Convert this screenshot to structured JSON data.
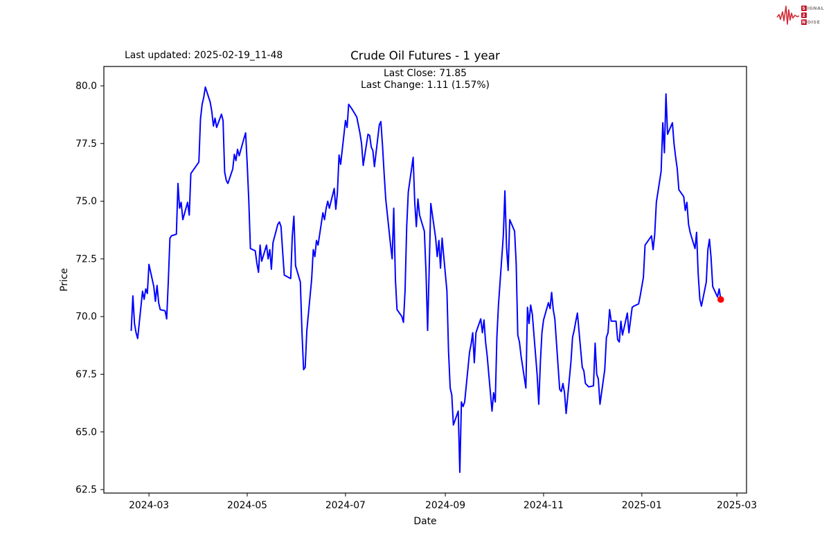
{
  "header": {
    "last_updated": "Last updated: 2025-02-19_11-48"
  },
  "logo": {
    "line1_boxed": "S",
    "line1_rest": "IGNAL",
    "line2_boxed": "2",
    "line3_boxed": "N",
    "line3_rest": "OISE",
    "box_color": "#c0182c",
    "wave_color": "#d12b35",
    "letter_color": "#8a8078"
  },
  "chart_data": {
    "type": "line",
    "title": "Crude Oil Futures - 1 year",
    "annotations": [
      "Last Close: 71.85",
      "Last Change: 1.11 (1.57%)"
    ],
    "xlabel": "Date",
    "ylabel": "Price",
    "grid": false,
    "legend": "none",
    "line_color": "#0000ff",
    "line_width": 2,
    "last_point_marker": {
      "color": "#ff0000",
      "radius": 4.8
    },
    "last_close": 71.85,
    "last_change": 1.11,
    "last_change_pct": 1.57,
    "ylim": [
      62.35,
      80.84
    ],
    "xlim": [
      "2024-02-02",
      "2025-03-07"
    ],
    "y_ticks": [
      {
        "label": "62.5",
        "value": 62.5
      },
      {
        "label": "65.0",
        "value": 65.0
      },
      {
        "label": "67.5",
        "value": 67.5
      },
      {
        "label": "70.0",
        "value": 70.0
      },
      {
        "label": "72.5",
        "value": 72.5
      },
      {
        "label": "75.0",
        "value": 75.0
      },
      {
        "label": "77.5",
        "value": 77.5
      },
      {
        "label": "80.0",
        "value": 80.0
      }
    ],
    "x_ticks": [
      {
        "label": "2024-03",
        "date": "2024-03-01"
      },
      {
        "label": "2024-05",
        "date": "2024-05-01"
      },
      {
        "label": "2024-07",
        "date": "2024-07-01"
      },
      {
        "label": "2024-09",
        "date": "2024-09-01"
      },
      {
        "label": "2024-11",
        "date": "2024-11-01"
      },
      {
        "label": "2025-01",
        "date": "2025-01-01"
      },
      {
        "label": "2025-03",
        "date": "2025-03-01"
      }
    ],
    "series": [
      {
        "name": "Crude Oil Futures",
        "dates": [
          "2024-02-19",
          "2024-02-20",
          "2024-02-21",
          "2024-02-22",
          "2024-02-23",
          "2024-02-26",
          "2024-02-27",
          "2024-02-28",
          "2024-02-29",
          "2024-03-01",
          "2024-03-04",
          "2024-03-05",
          "2024-03-06",
          "2024-03-07",
          "2024-03-08",
          "2024-03-11",
          "2024-03-12",
          "2024-03-13",
          "2024-03-14",
          "2024-03-15",
          "2024-03-18",
          "2024-03-19",
          "2024-03-20",
          "2024-03-21",
          "2024-03-22",
          "2024-03-25",
          "2024-03-26",
          "2024-03-27",
          "2024-03-28",
          "2024-04-01",
          "2024-04-02",
          "2024-04-03",
          "2024-04-04",
          "2024-04-05",
          "2024-04-08",
          "2024-04-09",
          "2024-04-10",
          "2024-04-11",
          "2024-04-12",
          "2024-04-15",
          "2024-04-16",
          "2024-04-17",
          "2024-04-18",
          "2024-04-19",
          "2024-04-22",
          "2024-04-23",
          "2024-04-24",
          "2024-04-25",
          "2024-04-26",
          "2024-04-29",
          "2024-04-30",
          "2024-05-01",
          "2024-05-02",
          "2024-05-03",
          "2024-05-06",
          "2024-05-07",
          "2024-05-08",
          "2024-05-09",
          "2024-05-10",
          "2024-05-13",
          "2024-05-14",
          "2024-05-15",
          "2024-05-16",
          "2024-05-17",
          "2024-05-20",
          "2024-05-21",
          "2024-05-22",
          "2024-05-23",
          "2024-05-24",
          "2024-05-28",
          "2024-05-29",
          "2024-05-30",
          "2024-05-31",
          "2024-06-03",
          "2024-06-04",
          "2024-06-05",
          "2024-06-06",
          "2024-06-07",
          "2024-06-10",
          "2024-06-11",
          "2024-06-12",
          "2024-06-13",
          "2024-06-14",
          "2024-06-17",
          "2024-06-18",
          "2024-06-19",
          "2024-06-20",
          "2024-06-21",
          "2024-06-24",
          "2024-06-25",
          "2024-06-26",
          "2024-06-27",
          "2024-06-28",
          "2024-07-01",
          "2024-07-02",
          "2024-07-03",
          "2024-07-05",
          "2024-07-08",
          "2024-07-09",
          "2024-07-10",
          "2024-07-11",
          "2024-07-12",
          "2024-07-15",
          "2024-07-16",
          "2024-07-17",
          "2024-07-18",
          "2024-07-19",
          "2024-07-22",
          "2024-07-23",
          "2024-07-24",
          "2024-07-25",
          "2024-07-26",
          "2024-07-29",
          "2024-07-30",
          "2024-07-31",
          "2024-08-01",
          "2024-08-02",
          "2024-08-05",
          "2024-08-06",
          "2024-08-07",
          "2024-08-08",
          "2024-08-09",
          "2024-08-12",
          "2024-08-13",
          "2024-08-14",
          "2024-08-15",
          "2024-08-16",
          "2024-08-19",
          "2024-08-20",
          "2024-08-21",
          "2024-08-22",
          "2024-08-23",
          "2024-08-26",
          "2024-08-27",
          "2024-08-28",
          "2024-08-29",
          "2024-08-30",
          "2024-09-02",
          "2024-09-03",
          "2024-09-04",
          "2024-09-05",
          "2024-09-06",
          "2024-09-09",
          "2024-09-10",
          "2024-09-11",
          "2024-09-12",
          "2024-09-13",
          "2024-09-16",
          "2024-09-17",
          "2024-09-18",
          "2024-09-19",
          "2024-09-20",
          "2024-09-23",
          "2024-09-24",
          "2024-09-25",
          "2024-09-26",
          "2024-09-27",
          "2024-09-30",
          "2024-10-01",
          "2024-10-02",
          "2024-10-03",
          "2024-10-04",
          "2024-10-07",
          "2024-10-08",
          "2024-10-09",
          "2024-10-10",
          "2024-10-11",
          "2024-10-14",
          "2024-10-15",
          "2024-10-16",
          "2024-10-17",
          "2024-10-18",
          "2024-10-21",
          "2024-10-22",
          "2024-10-23",
          "2024-10-24",
          "2024-10-25",
          "2024-10-28",
          "2024-10-29",
          "2024-10-30",
          "2024-10-31",
          "2024-11-01",
          "2024-11-04",
          "2024-11-05",
          "2024-11-06",
          "2024-11-07",
          "2024-11-08",
          "2024-11-11",
          "2024-11-12",
          "2024-11-13",
          "2024-11-14",
          "2024-11-15",
          "2024-11-18",
          "2024-11-19",
          "2024-11-20",
          "2024-11-21",
          "2024-11-22",
          "2024-11-25",
          "2024-11-26",
          "2024-11-27",
          "2024-11-29",
          "2024-12-02",
          "2024-12-03",
          "2024-12-04",
          "2024-12-05",
          "2024-12-06",
          "2024-12-09",
          "2024-12-10",
          "2024-12-11",
          "2024-12-12",
          "2024-12-13",
          "2024-12-16",
          "2024-12-17",
          "2024-12-18",
          "2024-12-19",
          "2024-12-20",
          "2024-12-23",
          "2024-12-24",
          "2024-12-26",
          "2024-12-27",
          "2024-12-30",
          "2024-12-31",
          "2025-01-02",
          "2025-01-03",
          "2025-01-06",
          "2025-01-07",
          "2025-01-08",
          "2025-01-09",
          "2025-01-10",
          "2025-01-13",
          "2025-01-14",
          "2025-01-15",
          "2025-01-16",
          "2025-01-17",
          "2025-01-20",
          "2025-01-21",
          "2025-01-22",
          "2025-01-23",
          "2025-01-24",
          "2025-01-27",
          "2025-01-28",
          "2025-01-29",
          "2025-01-30",
          "2025-01-31",
          "2025-02-03",
          "2025-02-04",
          "2025-02-05",
          "2025-02-06",
          "2025-02-07",
          "2025-02-10",
          "2025-02-11",
          "2025-02-12",
          "2025-02-13",
          "2025-02-14",
          "2025-02-17",
          "2025-02-18",
          "2025-02-19"
        ],
        "values": [
          69.4,
          70.9,
          69.7,
          69.3,
          69.05,
          71.1,
          70.75,
          71.2,
          71.0,
          72.26,
          71.3,
          70.66,
          71.35,
          70.6,
          70.3,
          70.25,
          69.9,
          71.5,
          73.4,
          73.5,
          73.57,
          75.77,
          74.7,
          74.95,
          74.2,
          74.95,
          74.4,
          76.2,
          76.3,
          76.7,
          78.56,
          79.2,
          79.5,
          79.95,
          79.3,
          78.9,
          78.26,
          78.6,
          78.2,
          78.77,
          78.5,
          76.27,
          75.9,
          75.77,
          76.4,
          77.03,
          76.76,
          77.25,
          76.97,
          77.72,
          77.96,
          76.6,
          75.0,
          72.95,
          72.85,
          72.3,
          71.92,
          73.1,
          72.4,
          73.1,
          72.5,
          72.9,
          72.05,
          73.2,
          74.0,
          74.1,
          73.9,
          72.8,
          71.8,
          71.65,
          73.5,
          74.35,
          72.2,
          71.5,
          69.3,
          67.7,
          67.8,
          69.4,
          71.6,
          72.9,
          72.6,
          73.3,
          73.1,
          74.5,
          74.2,
          74.7,
          75.0,
          74.7,
          75.55,
          74.65,
          75.35,
          77.0,
          76.6,
          78.5,
          78.2,
          79.2,
          79.0,
          78.65,
          78.3,
          77.95,
          77.5,
          76.55,
          77.9,
          77.85,
          77.35,
          77.2,
          76.5,
          78.3,
          78.45,
          77.4,
          76.2,
          75.1,
          73.1,
          72.5,
          74.7,
          71.6,
          70.3,
          70.0,
          69.75,
          71.1,
          73.9,
          75.4,
          76.9,
          74.95,
          73.9,
          75.1,
          74.4,
          73.7,
          71.9,
          69.4,
          72.1,
          74.9,
          73.4,
          72.6,
          73.3,
          72.1,
          73.4,
          71.1,
          68.5,
          66.9,
          66.6,
          65.3,
          65.9,
          63.25,
          66.3,
          66.1,
          66.3,
          68.45,
          68.8,
          69.3,
          68.0,
          69.3,
          69.9,
          69.3,
          69.85,
          68.9,
          68.3,
          65.9,
          66.7,
          66.3,
          69.1,
          70.5,
          73.5,
          75.45,
          73.0,
          72.0,
          74.2,
          73.7,
          72.3,
          69.2,
          68.9,
          68.3,
          66.9,
          70.4,
          69.7,
          70.5,
          70.1,
          67.5,
          66.2,
          68.0,
          69.3,
          69.85,
          70.6,
          70.35,
          71.05,
          70.3,
          69.9,
          66.85,
          66.75,
          67.1,
          66.7,
          65.8,
          68.05,
          69.1,
          69.4,
          69.8,
          70.15,
          67.8,
          67.65,
          67.1,
          66.95,
          67.0,
          68.85,
          67.5,
          67.3,
          66.2,
          67.7,
          69.1,
          69.3,
          70.3,
          69.8,
          69.8,
          69.0,
          68.9,
          69.8,
          69.2,
          70.15,
          69.3,
          70.4,
          70.45,
          70.55,
          70.9,
          71.7,
          73.1,
          73.4,
          73.5,
          72.9,
          73.55,
          74.95,
          76.3,
          78.4,
          77.1,
          79.65,
          77.9,
          78.4,
          77.5,
          76.9,
          76.4,
          75.5,
          75.2,
          74.6,
          74.95,
          74.0,
          73.65,
          72.95,
          73.65,
          71.85,
          70.75,
          70.45,
          71.5,
          72.9,
          73.35,
          72.55,
          71.3,
          70.85,
          71.2,
          70.74,
          71.85
        ]
      }
    ]
  }
}
